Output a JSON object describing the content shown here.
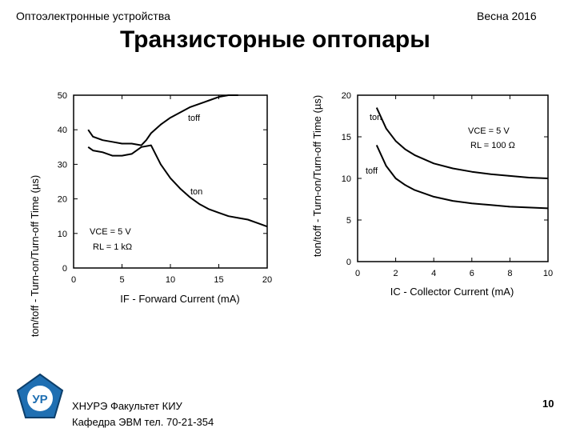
{
  "header": {
    "left_text": "Оптоэлектронные устройства",
    "right_text": "Весна 2016",
    "title": "Транзисторные оптопары"
  },
  "footer": {
    "line1": "ХНУРЭ Факультет КИУ",
    "line2": "Кафедра ЭВМ   тел. 70-21-354",
    "page_number": "10",
    "logo_text": "УР"
  },
  "colors": {
    "ink": "#000000",
    "logo_blue": "#1f6fb2"
  },
  "chart_data": [
    {
      "type": "line",
      "xlabel": "IF - Forward Current (mA)",
      "ylabel": "ton/toff - Turn-on/Turn-off Time (µs)",
      "xlim": [
        0,
        20
      ],
      "ylim": [
        0,
        50
      ],
      "xticks": [
        "0",
        "5",
        "10",
        "15",
        "20"
      ],
      "yticks": [
        "0",
        "10",
        "20",
        "30",
        "40",
        "50"
      ],
      "annotation_lines": [
        "VCE = 5 V",
        "RL = 1 kΩ"
      ],
      "series": [
        {
          "name": "toff",
          "x": [
            1.5,
            2,
            3,
            4,
            5,
            6,
            7,
            7.5,
            8,
            9,
            10,
            11,
            12,
            13,
            14,
            15,
            16,
            17
          ],
          "y": [
            40,
            38,
            37,
            36.5,
            36,
            36,
            35.5,
            37,
            39,
            41.5,
            43.5,
            45,
            46.5,
            47.5,
            48.5,
            49.5,
            50.5,
            51
          ]
        },
        {
          "name": "ton",
          "x": [
            1.5,
            2,
            3,
            4,
            5,
            6,
            7,
            8,
            9,
            10,
            11,
            12,
            13,
            14,
            15,
            16,
            17,
            18,
            19,
            20
          ],
          "y": [
            35,
            34,
            33.5,
            32.5,
            32.5,
            33,
            35,
            35.5,
            30,
            26,
            23,
            20.5,
            18.5,
            17,
            16,
            15,
            14.5,
            14,
            13,
            12
          ]
        }
      ]
    },
    {
      "type": "line",
      "xlabel": "IC - Collector Current (mA)",
      "ylabel": "ton/toff - Turn-on/Turn-off Time (µs)",
      "xlim": [
        0,
        10
      ],
      "ylim": [
        0,
        20
      ],
      "xticks": [
        "0",
        "2",
        "4",
        "6",
        "8",
        "10"
      ],
      "yticks": [
        "0",
        "5",
        "10",
        "15",
        "20"
      ],
      "annotation_lines": [
        "VCE = 5 V",
        "RL = 100 Ω"
      ],
      "series": [
        {
          "name": "ton",
          "x": [
            1,
            1.5,
            2,
            2.5,
            3,
            4,
            5,
            6,
            7,
            8,
            9,
            10
          ],
          "y": [
            18.5,
            16,
            14.5,
            13.5,
            12.8,
            11.8,
            11.2,
            10.8,
            10.5,
            10.3,
            10.1,
            10
          ]
        },
        {
          "name": "toff",
          "x": [
            1,
            1.5,
            2,
            2.5,
            3,
            4,
            5,
            6,
            7,
            8,
            9,
            10
          ],
          "y": [
            14,
            11.5,
            10,
            9.2,
            8.6,
            7.8,
            7.3,
            7,
            6.8,
            6.6,
            6.5,
            6.4
          ]
        }
      ]
    }
  ]
}
